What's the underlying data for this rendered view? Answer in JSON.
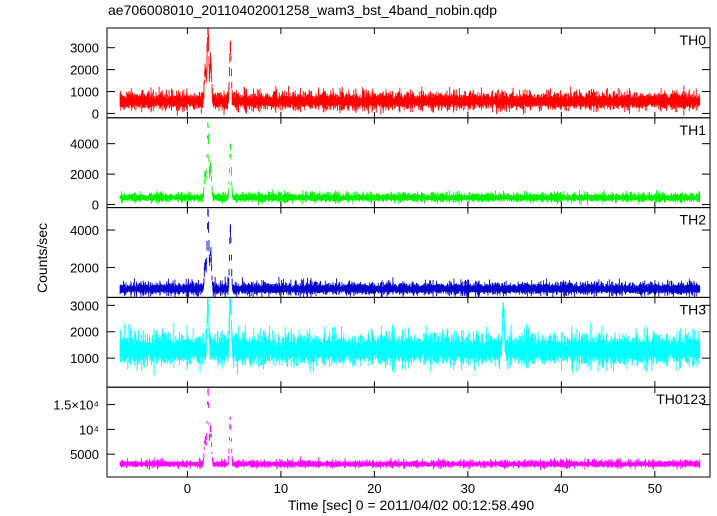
{
  "chart_data": {
    "type": "line",
    "title": "ae706008010_20110402001258_wam3_bst_4band_nobin.qdp",
    "xlabel": "Time [sec] 0 = 2011/04/02 00:12:58.490",
    "ylabel": "Counts/sec",
    "xlim": [
      -8.6,
      55.9
    ],
    "x_ticks": [
      0,
      10,
      20,
      30,
      40,
      50
    ],
    "x_tick_labels": [
      "0",
      "10",
      "20",
      "30",
      "40",
      "50"
    ],
    "grid": false,
    "panels": [
      {
        "name": "TH0",
        "color": "#ff0000",
        "ylim": [
          -200,
          3900
        ],
        "y_ticks": [
          0,
          1000,
          2000,
          3000
        ],
        "y_tick_labels": [
          "0",
          "1000",
          "2000",
          "3000"
        ],
        "baseline": 550,
        "noise": 380,
        "peaks": [
          {
            "t": 1.9,
            "value": 2000
          },
          {
            "t": 2.2,
            "value": 3850
          },
          {
            "t": 2.5,
            "value": 2300
          },
          {
            "t": 4.6,
            "value": 3050
          }
        ]
      },
      {
        "name": "TH1",
        "color": "#00ee00",
        "ylim": [
          -200,
          5700
        ],
        "y_ticks": [
          0,
          2000,
          4000
        ],
        "y_tick_labels": [
          "0",
          "2000",
          "4000"
        ],
        "baseline": 450,
        "noise": 280,
        "peaks": [
          {
            "t": 1.9,
            "value": 2100
          },
          {
            "t": 2.2,
            "value": 5300
          },
          {
            "t": 2.5,
            "value": 2600
          },
          {
            "t": 4.6,
            "value": 3900
          }
        ]
      },
      {
        "name": "TH2",
        "color": "#0000cc",
        "ylim": [
          400,
          5200
        ],
        "y_ticks": [
          2000,
          4000
        ],
        "y_tick_labels": [
          "2000",
          "4000"
        ],
        "baseline": 850,
        "noise": 320,
        "peaks": [
          {
            "t": 1.9,
            "value": 2200
          },
          {
            "t": 2.2,
            "value": 5000
          },
          {
            "t": 2.5,
            "value": 2800
          },
          {
            "t": 4.6,
            "value": 4100
          }
        ]
      },
      {
        "name": "TH3",
        "color": "#00ffff",
        "ylim": [
          -100,
          3300
        ],
        "y_ticks": [
          1000,
          2000,
          3000
        ],
        "y_tick_labels": [
          "1000",
          "2000",
          "3000"
        ],
        "baseline": 1300,
        "noise": 550,
        "peaks": [
          {
            "t": 2.2,
            "value": 3300
          },
          {
            "t": 4.6,
            "value": 3300
          },
          {
            "t": 33.8,
            "value": 2900
          }
        ]
      },
      {
        "name": "TH0123",
        "color": "#ff00ff",
        "ylim": [
          400,
          18500
        ],
        "y_ticks": [
          5000,
          10000,
          15000
        ],
        "y_tick_labels": [
          "5000",
          "10⁴",
          "1.5×10⁴"
        ],
        "baseline": 3000,
        "noise": 700,
        "peaks": [
          {
            "t": 1.9,
            "value": 8000
          },
          {
            "t": 2.2,
            "value": 18000
          },
          {
            "t": 2.5,
            "value": 10000
          },
          {
            "t": 4.6,
            "value": 12500
          }
        ]
      }
    ]
  }
}
